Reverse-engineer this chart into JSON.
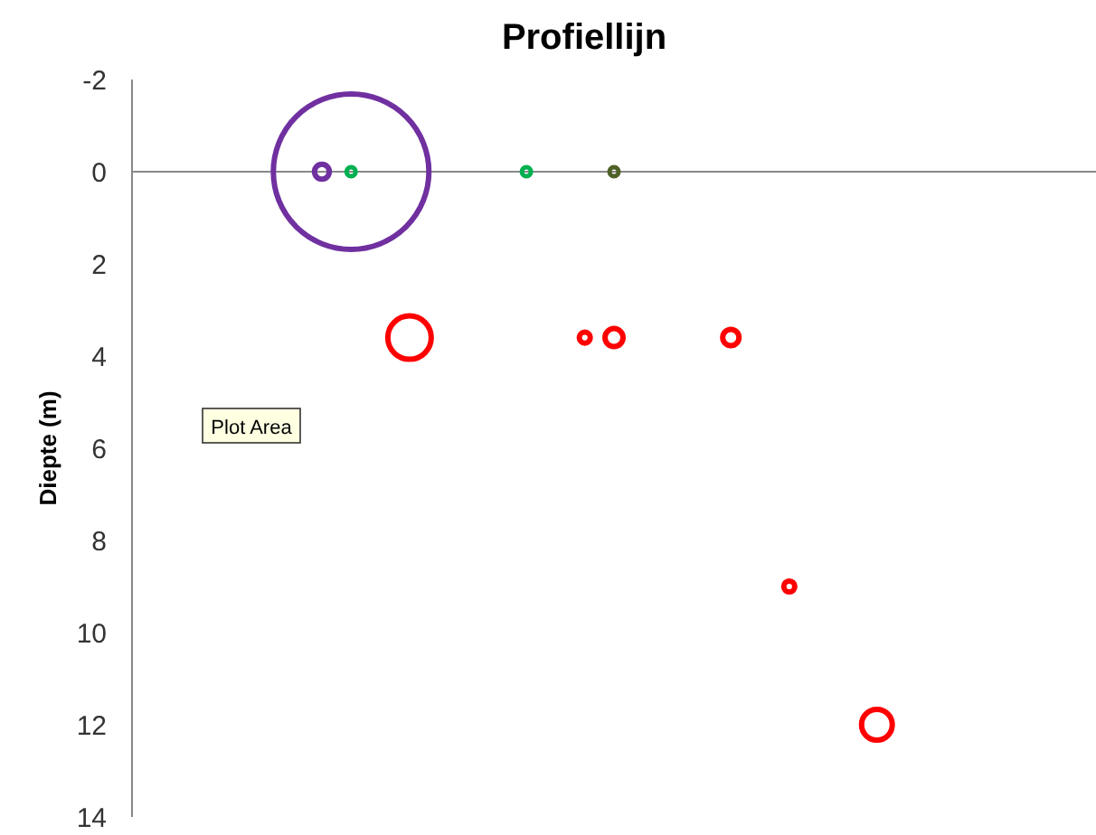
{
  "chart_data": {
    "type": "bubble",
    "title": "Profiellijn",
    "ylabel": "Diepte (m)",
    "categories": [
      null,
      null,
      null,
      null,
      null,
      null,
      null,
      null,
      null,
      null,
      null,
      null,
      null,
      null,
      null,
      null,
      null,
      null,
      null,
      null,
      null,
      null,
      null,
      null,
      null,
      null,
      null,
      null,
      null,
      null,
      null,
      null,
      null
    ],
    "ylim": [
      14,
      -2
    ],
    "yticks": [
      -2,
      0,
      2,
      4,
      6,
      8,
      10,
      12,
      14
    ],
    "ref_lines": [
      {
        "axis": "y",
        "value": 0,
        "color": "#888888"
      }
    ],
    "annotations": [
      "Plot Area"
    ],
    "series": [
      {
        "color": "#7030a0",
        "values": [
          null,
          null,
          null,
          null,
          null,
          null,
          0,
          0,
          null,
          null,
          null,
          null,
          null,
          null,
          null,
          null,
          null,
          null,
          null,
          null,
          null,
          null,
          null,
          null,
          null,
          null,
          null,
          null,
          null,
          null,
          null,
          null,
          null
        ],
        "sizes": [
          null,
          null,
          null,
          null,
          null,
          null,
          0.009,
          1,
          null,
          null,
          null,
          null,
          null,
          null,
          null,
          null,
          null,
          null,
          null,
          null,
          null,
          null,
          null,
          null,
          null,
          null,
          null,
          null,
          null,
          null,
          null,
          null,
          null
        ]
      },
      {
        "color": "#00b050",
        "values": [
          null,
          null,
          null,
          null,
          null,
          null,
          null,
          0,
          null,
          null,
          null,
          null,
          null,
          0,
          null,
          null,
          null,
          null,
          null,
          null,
          null,
          null,
          null,
          null,
          null,
          null,
          null,
          null,
          null,
          null,
          null,
          null,
          null
        ],
        "sizes": [
          null,
          null,
          null,
          null,
          null,
          null,
          null,
          0.0034,
          null,
          null,
          null,
          null,
          null,
          0.0034,
          null,
          null,
          null,
          null,
          null,
          null,
          null,
          null,
          null,
          null,
          null,
          null,
          null,
          null,
          null,
          null,
          null,
          null,
          null
        ]
      },
      {
        "color": "#4f6228",
        "values": [
          null,
          null,
          null,
          null,
          null,
          null,
          null,
          null,
          null,
          null,
          null,
          null,
          null,
          null,
          null,
          null,
          0,
          null,
          null,
          null,
          null,
          null,
          null,
          null,
          null,
          null,
          null,
          null,
          null,
          null,
          null,
          null,
          null
        ],
        "sizes": [
          null,
          null,
          null,
          null,
          null,
          null,
          null,
          null,
          null,
          null,
          null,
          null,
          null,
          null,
          null,
          null,
          0.0034,
          null,
          null,
          null,
          null,
          null,
          null,
          null,
          null,
          null,
          null,
          null,
          null,
          null,
          null,
          null,
          null
        ]
      },
      {
        "color": "#ff0000",
        "values": [
          null,
          null,
          null,
          null,
          null,
          null,
          null,
          null,
          null,
          3.6,
          null,
          null,
          null,
          null,
          null,
          3.6,
          3.6,
          null,
          null,
          null,
          3.6,
          null,
          9,
          null,
          null,
          12,
          null,
          null,
          null,
          null,
          null,
          null,
          null
        ],
        "sizes": [
          null,
          null,
          null,
          null,
          null,
          null,
          null,
          null,
          null,
          0.078,
          null,
          null,
          null,
          null,
          null,
          0.005,
          0.0135,
          null,
          null,
          null,
          0.011,
          null,
          0.005,
          null,
          null,
          0.039,
          null,
          null,
          null,
          null,
          null,
          null,
          null
        ]
      }
    ]
  }
}
